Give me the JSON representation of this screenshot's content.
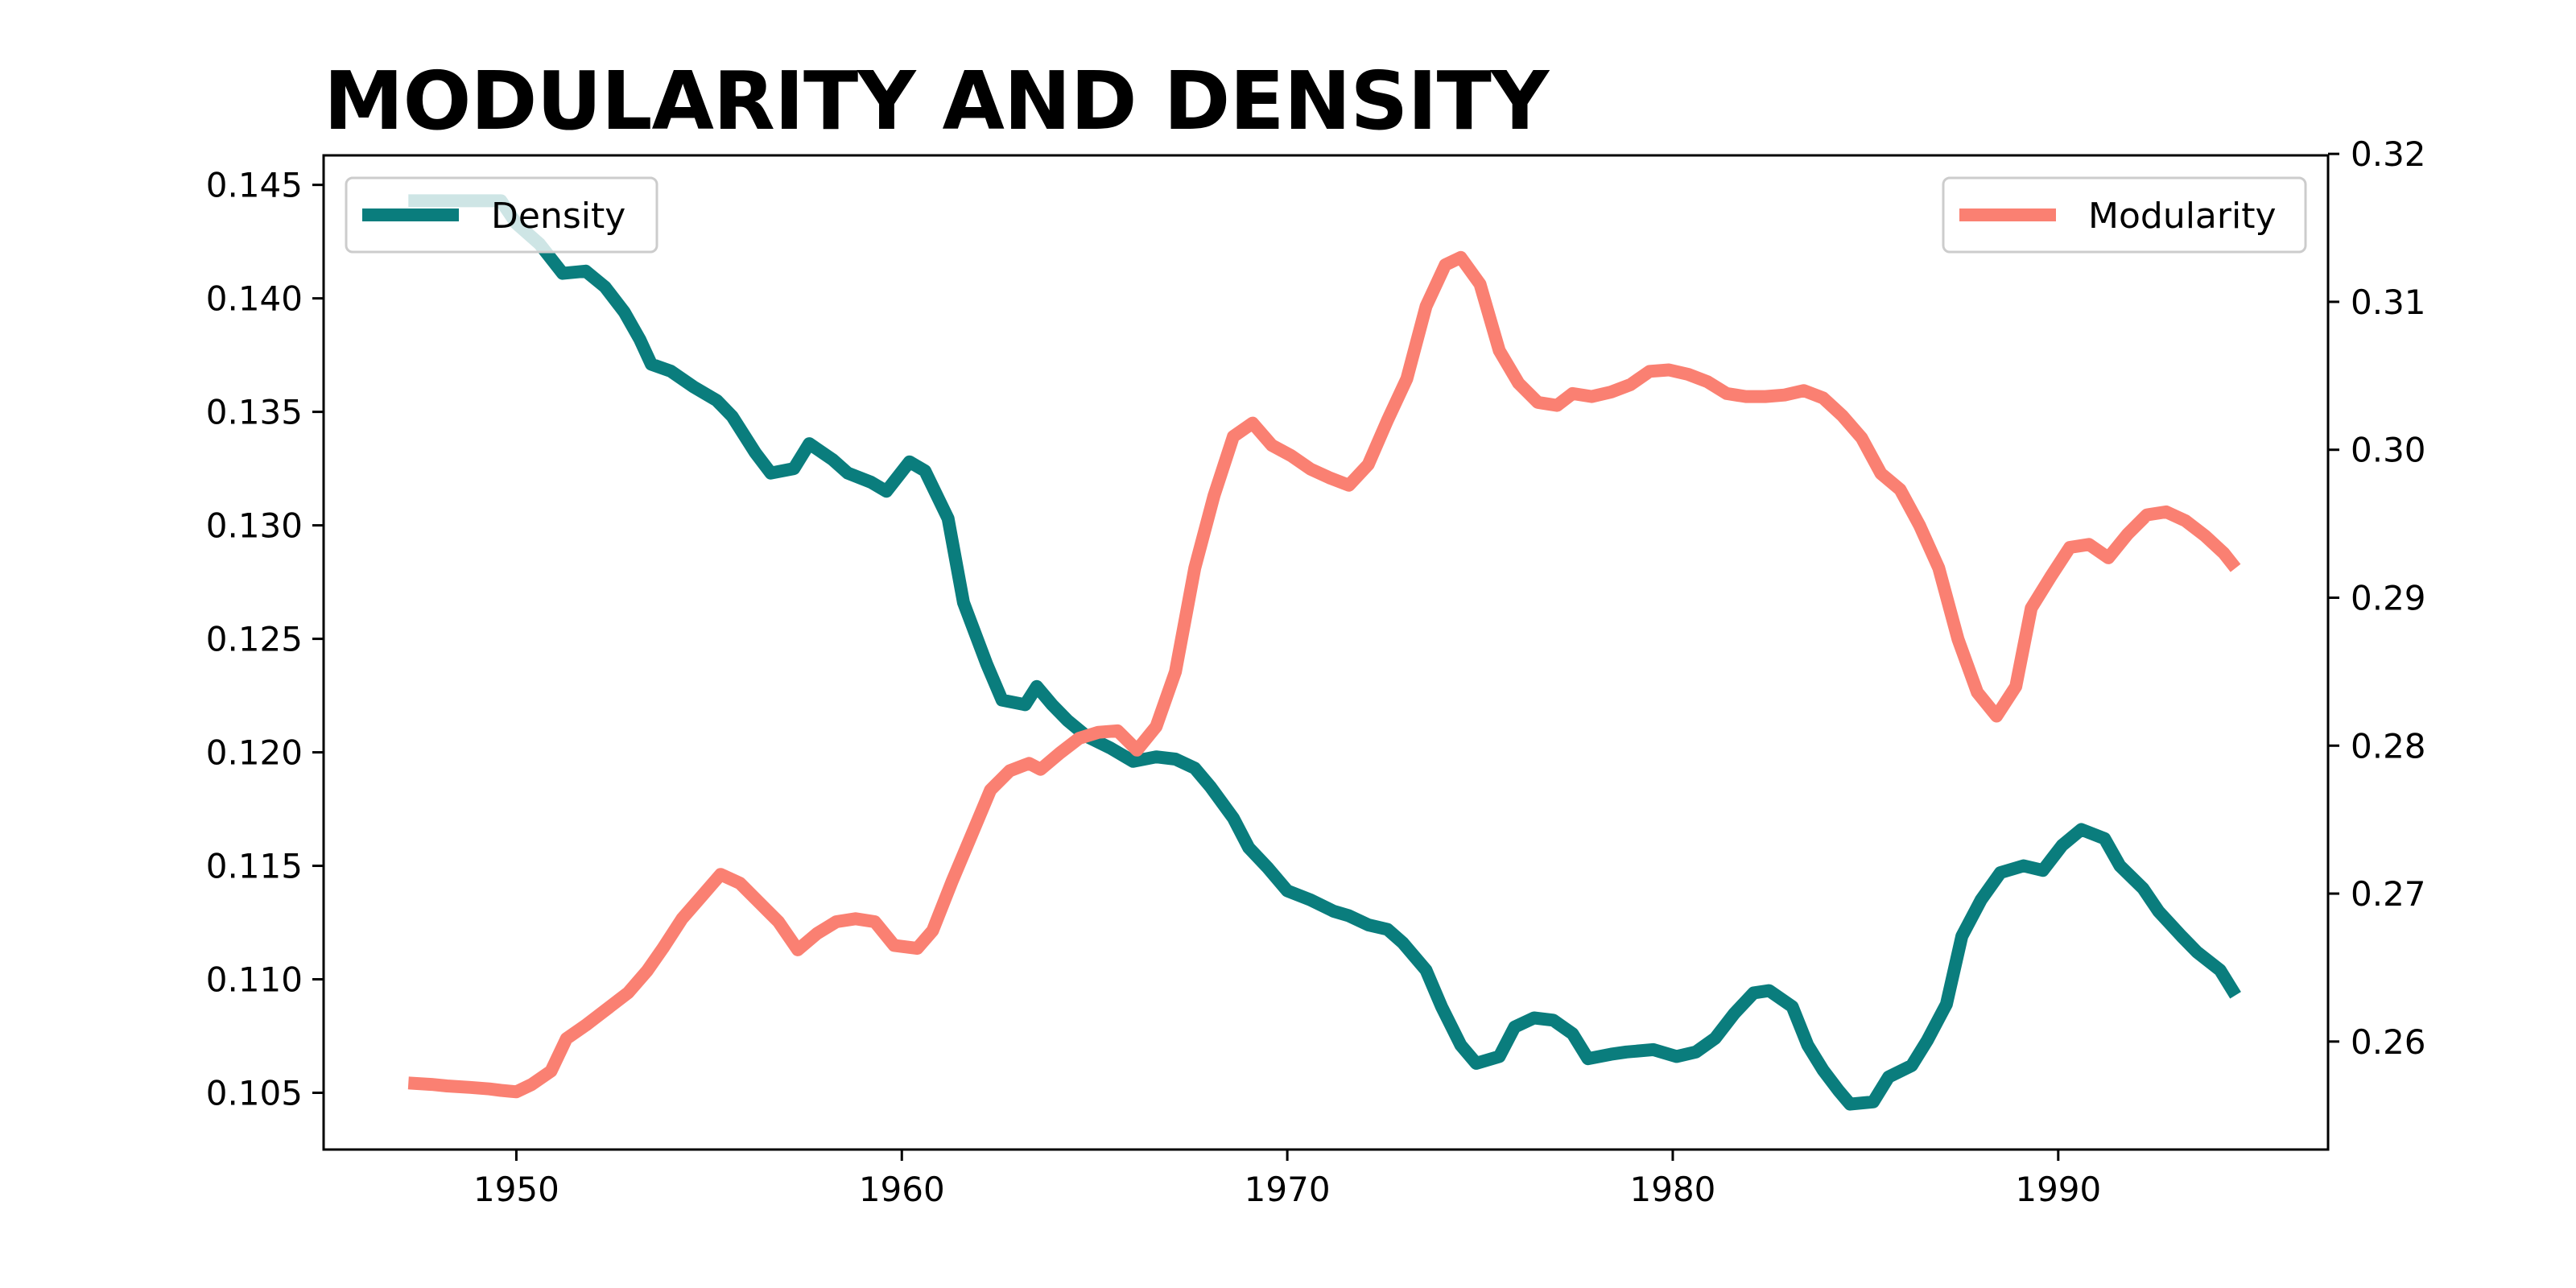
{
  "chart_data": {
    "type": "line",
    "title": "MODULARITY AND DENSITY",
    "xlabel": "",
    "ylabel": "",
    "y2label": "",
    "xlim": [
      1945,
      1997
    ],
    "ylim": [
      0.1025,
      0.1463
    ],
    "y2lim": [
      0.2527,
      0.3199
    ],
    "xticks": [
      1950,
      1960,
      1970,
      1980,
      1990
    ],
    "xtick_labels": [
      "1950",
      "1960",
      "1970",
      "1980",
      "1990"
    ],
    "yticks": [
      0.105,
      0.11,
      0.115,
      0.12,
      0.125,
      0.13,
      0.135,
      0.14,
      0.145
    ],
    "ytick_labels": [
      "0.105",
      "0.110",
      "0.115",
      "0.120",
      "0.125",
      "0.130",
      "0.135",
      "0.140",
      "0.145"
    ],
    "y2ticks": [
      0.26,
      0.27,
      0.28,
      0.29,
      0.3,
      0.31,
      0.32
    ],
    "y2tick_labels": [
      "0.26",
      "0.27",
      "0.28",
      "0.29",
      "0.30",
      "0.31",
      "0.32"
    ],
    "grid": false,
    "series": [
      {
        "name": "Density",
        "axis": "left",
        "color": "#0a7d7d",
        "legend_position": "top-left",
        "points": [
          [
            1947.2,
            0.1443
          ],
          [
            1948.0,
            0.1443
          ],
          [
            1948.8,
            0.1443
          ],
          [
            1949.6,
            0.1443
          ],
          [
            1950.0,
            0.1433
          ],
          [
            1950.6,
            0.1424
          ],
          [
            1951.2,
            0.1411
          ],
          [
            1951.8,
            0.1412
          ],
          [
            1952.3,
            0.1405
          ],
          [
            1952.8,
            0.1394
          ],
          [
            1953.2,
            0.1382
          ],
          [
            1953.5,
            0.1371
          ],
          [
            1954.0,
            0.1368
          ],
          [
            1954.6,
            0.1361
          ],
          [
            1955.2,
            0.1355
          ],
          [
            1955.6,
            0.1348
          ],
          [
            1956.2,
            0.1332
          ],
          [
            1956.6,
            0.1323
          ],
          [
            1957.2,
            0.1325
          ],
          [
            1957.6,
            0.1336
          ],
          [
            1958.2,
            0.1329
          ],
          [
            1958.6,
            0.1323
          ],
          [
            1959.2,
            0.1319
          ],
          [
            1959.6,
            0.1315
          ],
          [
            1960.2,
            0.1328
          ],
          [
            1960.6,
            0.1324
          ],
          [
            1961.2,
            0.1303
          ],
          [
            1961.6,
            0.1266
          ],
          [
            1962.2,
            0.1239
          ],
          [
            1962.6,
            0.1223
          ],
          [
            1963.2,
            0.1221
          ],
          [
            1963.5,
            0.1229
          ],
          [
            1963.9,
            0.1221
          ],
          [
            1964.3,
            0.1214
          ],
          [
            1964.8,
            0.1207
          ],
          [
            1965.4,
            0.1202
          ],
          [
            1966.0,
            0.1196
          ],
          [
            1966.6,
            0.1198
          ],
          [
            1967.1,
            0.1197
          ],
          [
            1967.6,
            0.1193
          ],
          [
            1968.0,
            0.1185
          ],
          [
            1968.6,
            0.1171
          ],
          [
            1969.0,
            0.1158
          ],
          [
            1969.5,
            0.1149
          ],
          [
            1970.0,
            0.1139
          ],
          [
            1970.6,
            0.1135
          ],
          [
            1971.2,
            0.113
          ],
          [
            1971.6,
            0.1128
          ],
          [
            1972.1,
            0.1124
          ],
          [
            1972.6,
            0.1122
          ],
          [
            1973.0,
            0.1116
          ],
          [
            1973.6,
            0.1104
          ],
          [
            1974.0,
            0.1088
          ],
          [
            1974.5,
            0.1071
          ],
          [
            1974.9,
            0.1063
          ],
          [
            1975.5,
            0.1066
          ],
          [
            1975.9,
            0.1079
          ],
          [
            1976.4,
            0.1083
          ],
          [
            1976.9,
            0.1082
          ],
          [
            1977.4,
            0.1076
          ],
          [
            1977.8,
            0.1065
          ],
          [
            1978.4,
            0.1067
          ],
          [
            1978.8,
            0.1068
          ],
          [
            1979.5,
            0.1069
          ],
          [
            1980.1,
            0.1066
          ],
          [
            1980.6,
            0.1068
          ],
          [
            1981.1,
            0.1074
          ],
          [
            1981.6,
            0.1085
          ],
          [
            1982.1,
            0.1094
          ],
          [
            1982.5,
            0.1095
          ],
          [
            1983.1,
            0.1088
          ],
          [
            1983.5,
            0.1071
          ],
          [
            1983.9,
            0.106
          ],
          [
            1984.3,
            0.1051
          ],
          [
            1984.6,
            0.1045
          ],
          [
            1985.2,
            0.1046
          ],
          [
            1985.6,
            0.1057
          ],
          [
            1986.2,
            0.1062
          ],
          [
            1986.6,
            0.1073
          ],
          [
            1987.1,
            0.1089
          ],
          [
            1987.5,
            0.1119
          ],
          [
            1988.0,
            0.1135
          ],
          [
            1988.5,
            0.1147
          ],
          [
            1989.1,
            0.115
          ],
          [
            1989.6,
            0.1148
          ],
          [
            1990.1,
            0.1159
          ],
          [
            1990.6,
            0.1166
          ],
          [
            1991.2,
            0.1162
          ],
          [
            1991.6,
            0.115
          ],
          [
            1992.2,
            0.114
          ],
          [
            1992.6,
            0.113
          ],
          [
            1993.2,
            0.1119
          ],
          [
            1993.6,
            0.1112
          ],
          [
            1994.2,
            0.1104
          ],
          [
            1994.6,
            0.1093
          ]
        ]
      },
      {
        "name": "Modularity",
        "axis": "right",
        "color": "#fa8072",
        "legend_position": "top-right",
        "points": [
          [
            1947.2,
            0.2572
          ],
          [
            1947.8,
            0.2571
          ],
          [
            1948.2,
            0.257
          ],
          [
            1948.8,
            0.2569
          ],
          [
            1949.3,
            0.2568
          ],
          [
            1949.6,
            0.2567
          ],
          [
            1950.0,
            0.2566
          ],
          [
            1950.4,
            0.2571
          ],
          [
            1950.9,
            0.258
          ],
          [
            1951.3,
            0.2602
          ],
          [
            1951.8,
            0.2611
          ],
          [
            1952.4,
            0.2623
          ],
          [
            1952.9,
            0.2633
          ],
          [
            1953.4,
            0.2648
          ],
          [
            1953.8,
            0.2663
          ],
          [
            1954.3,
            0.2683
          ],
          [
            1954.8,
            0.2698
          ],
          [
            1955.3,
            0.2713
          ],
          [
            1955.8,
            0.2707
          ],
          [
            1956.3,
            0.2694
          ],
          [
            1956.8,
            0.2681
          ],
          [
            1957.3,
            0.2662
          ],
          [
            1957.8,
            0.2673
          ],
          [
            1958.3,
            0.2681
          ],
          [
            1958.8,
            0.2683
          ],
          [
            1959.3,
            0.2681
          ],
          [
            1959.8,
            0.2665
          ],
          [
            1960.4,
            0.2663
          ],
          [
            1960.8,
            0.2675
          ],
          [
            1961.3,
            0.2708
          ],
          [
            1961.8,
            0.2739
          ],
          [
            1962.3,
            0.277
          ],
          [
            1962.8,
            0.2783
          ],
          [
            1963.3,
            0.2788
          ],
          [
            1963.6,
            0.2784
          ],
          [
            1964.1,
            0.2795
          ],
          [
            1964.6,
            0.2805
          ],
          [
            1965.1,
            0.2809
          ],
          [
            1965.6,
            0.281
          ],
          [
            1966.1,
            0.2797
          ],
          [
            1966.6,
            0.2813
          ],
          [
            1967.1,
            0.285
          ],
          [
            1967.6,
            0.292
          ],
          [
            1968.1,
            0.2969
          ],
          [
            1968.6,
            0.3009
          ],
          [
            1969.1,
            0.3018
          ],
          [
            1969.6,
            0.3003
          ],
          [
            1970.1,
            0.2996
          ],
          [
            1970.6,
            0.2987
          ],
          [
            1971.1,
            0.2981
          ],
          [
            1971.6,
            0.2976
          ],
          [
            1972.1,
            0.299
          ],
          [
            1972.6,
            0.302
          ],
          [
            1973.1,
            0.3048
          ],
          [
            1973.6,
            0.3097
          ],
          [
            1974.1,
            0.3125
          ],
          [
            1974.5,
            0.313
          ],
          [
            1975.0,
            0.3112
          ],
          [
            1975.5,
            0.3067
          ],
          [
            1976.0,
            0.3045
          ],
          [
            1976.5,
            0.3032
          ],
          [
            1977.0,
            0.303
          ],
          [
            1977.4,
            0.3038
          ],
          [
            1977.9,
            0.3036
          ],
          [
            1978.4,
            0.3039
          ],
          [
            1978.9,
            0.3044
          ],
          [
            1979.4,
            0.3053
          ],
          [
            1979.9,
            0.3054
          ],
          [
            1980.4,
            0.3051
          ],
          [
            1980.9,
            0.3046
          ],
          [
            1981.4,
            0.3038
          ],
          [
            1981.9,
            0.3036
          ],
          [
            1982.4,
            0.3036
          ],
          [
            1982.9,
            0.3037
          ],
          [
            1983.4,
            0.304
          ],
          [
            1983.9,
            0.3035
          ],
          [
            1984.4,
            0.3023
          ],
          [
            1984.9,
            0.3008
          ],
          [
            1985.4,
            0.2984
          ],
          [
            1985.9,
            0.2973
          ],
          [
            1986.4,
            0.2949
          ],
          [
            1986.9,
            0.292
          ],
          [
            1987.4,
            0.2872
          ],
          [
            1987.9,
            0.2836
          ],
          [
            1988.4,
            0.282
          ],
          [
            1988.9,
            0.284
          ],
          [
            1989.3,
            0.2893
          ],
          [
            1989.8,
            0.2914
          ],
          [
            1990.3,
            0.2934
          ],
          [
            1990.8,
            0.2936
          ],
          [
            1991.3,
            0.2927
          ],
          [
            1991.8,
            0.2943
          ],
          [
            1992.3,
            0.2956
          ],
          [
            1992.8,
            0.2958
          ],
          [
            1993.3,
            0.2952
          ],
          [
            1993.8,
            0.2942
          ],
          [
            1994.3,
            0.293
          ],
          [
            1994.6,
            0.292
          ]
        ]
      }
    ]
  }
}
